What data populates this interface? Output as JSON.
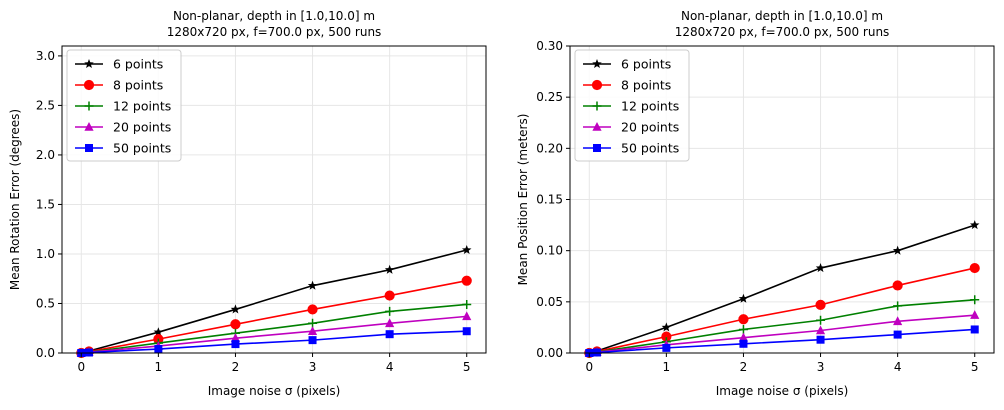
{
  "chart_data": [
    {
      "type": "line",
      "title": "Non-planar, depth in [1.0,10.0] m",
      "subtitle": "1280x720 px, f=700.0 px, 500 runs",
      "xlabel": "Image noise σ (pixels)",
      "ylabel": "Mean Rotation Error (degrees)",
      "xlim": [
        -0.25,
        5.25
      ],
      "ylim": [
        0,
        3.1
      ],
      "xticks": [
        0,
        1,
        2,
        3,
        4,
        5
      ],
      "xtick_labels": [
        "0",
        "1",
        "2",
        "3",
        "4",
        "5"
      ],
      "yticks": [
        0,
        0.5,
        1.0,
        1.5,
        2.0,
        2.5,
        3.0
      ],
      "ytick_labels": [
        "0.0",
        "0.5",
        "1.0",
        "1.5",
        "2.0",
        "2.5",
        "3.0"
      ],
      "grid": true,
      "legend_position": "top-left",
      "x": [
        0,
        0.1,
        1,
        2,
        3,
        4,
        5
      ],
      "series": [
        {
          "name": "6 points",
          "color": "#000000",
          "marker": "star",
          "values": [
            0.0,
            0.02,
            0.21,
            0.44,
            0.68,
            0.84,
            1.04
          ]
        },
        {
          "name": "8 points",
          "color": "#ff0000",
          "marker": "circle",
          "values": [
            0.0,
            0.015,
            0.14,
            0.29,
            0.44,
            0.58,
            0.73
          ]
        },
        {
          "name": "12 points",
          "color": "#008000",
          "marker": "plus",
          "values": [
            0.0,
            0.01,
            0.1,
            0.2,
            0.3,
            0.42,
            0.49
          ]
        },
        {
          "name": "20 points",
          "color": "#bf00bf",
          "marker": "triangle",
          "values": [
            0.0,
            0.008,
            0.07,
            0.15,
            0.22,
            0.3,
            0.37
          ]
        },
        {
          "name": "50 points",
          "color": "#0000ff",
          "marker": "square",
          "values": [
            0.0,
            0.005,
            0.04,
            0.09,
            0.13,
            0.19,
            0.22
          ]
        }
      ]
    },
    {
      "type": "line",
      "title": "Non-planar, depth in [1.0,10.0] m",
      "subtitle": "1280x720 px, f=700.0 px, 500 runs",
      "xlabel": "Image noise σ (pixels)",
      "ylabel": "Mean Position Error (meters)",
      "xlim": [
        -0.25,
        5.25
      ],
      "ylim": [
        0,
        0.3
      ],
      "xticks": [
        0,
        1,
        2,
        3,
        4,
        5
      ],
      "xtick_labels": [
        "0",
        "1",
        "2",
        "3",
        "4",
        "5"
      ],
      "yticks": [
        0,
        0.05,
        0.1,
        0.15,
        0.2,
        0.25,
        0.3
      ],
      "ytick_labels": [
        "0.00",
        "0.05",
        "0.10",
        "0.15",
        "0.20",
        "0.25",
        "0.30"
      ],
      "grid": true,
      "legend_position": "top-left",
      "x": [
        0,
        0.1,
        1,
        2,
        3,
        4,
        5
      ],
      "series": [
        {
          "name": "6 points",
          "color": "#000000",
          "marker": "star",
          "values": [
            0.0,
            0.002,
            0.025,
            0.053,
            0.083,
            0.1,
            0.125
          ]
        },
        {
          "name": "8 points",
          "color": "#ff0000",
          "marker": "circle",
          "values": [
            0.0,
            0.0015,
            0.016,
            0.033,
            0.047,
            0.066,
            0.083
          ]
        },
        {
          "name": "12 points",
          "color": "#008000",
          "marker": "plus",
          "values": [
            0.0,
            0.001,
            0.011,
            0.023,
            0.032,
            0.046,
            0.052
          ]
        },
        {
          "name": "20 points",
          "color": "#bf00bf",
          "marker": "triangle",
          "values": [
            0.0,
            0.0008,
            0.008,
            0.015,
            0.022,
            0.031,
            0.037
          ]
        },
        {
          "name": "50 points",
          "color": "#0000ff",
          "marker": "square",
          "values": [
            0.0,
            0.0005,
            0.005,
            0.009,
            0.013,
            0.018,
            0.023
          ]
        }
      ]
    }
  ]
}
